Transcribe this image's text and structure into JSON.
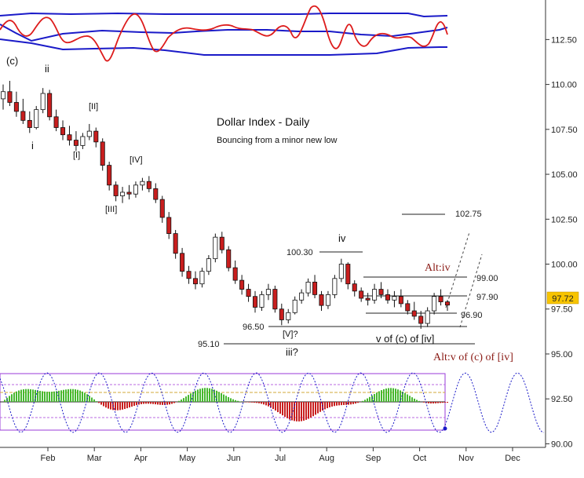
{
  "chart_data": {
    "type": "candlestick",
    "title": "Dollar Index - Daily",
    "subtitle": "Bouncing from a minor new low",
    "x_ticks": [
      "Feb",
      "Mar",
      "Apr",
      "May",
      "Jun",
      "Jul",
      "Aug",
      "Sep",
      "Oct",
      "Nov",
      "Dec"
    ],
    "y_ticks": [
      "112.50",
      "110.00",
      "107.50",
      "105.00",
      "102.50",
      "100.00",
      "97.50",
      "95.00",
      "92.50",
      "90.00"
    ],
    "ylim": [
      89.8,
      114.7
    ],
    "last_price": "97.72",
    "price_levels": [
      {
        "label": "102.75",
        "value": 102.75
      },
      {
        "label": "100.30",
        "value": 100.3
      },
      {
        "label": "99.00",
        "value": 99.0
      },
      {
        "label": "97.90",
        "value": 97.9
      },
      {
        "label": "96.90",
        "value": 96.9
      },
      {
        "label": "96.50",
        "value": 96.5
      },
      {
        "label": "95.10",
        "value": 95.1
      }
    ],
    "wave_labels": [
      "(c)",
      "ii",
      "i",
      "[II]",
      "[I]",
      "[IV]",
      "[III]",
      "iv",
      "[V]?",
      "iii?",
      "v of (c) of [iv]"
    ],
    "alt_labels": [
      "Alt:iv",
      "Alt:v of (c) of [iv]"
    ],
    "series": [
      {
        "values": [
          [
            109.2,
            110.0,
            108.6,
            109.6
          ],
          [
            109.6,
            110.2,
            108.8,
            109.0
          ],
          [
            109.0,
            109.6,
            108.2,
            108.5
          ],
          [
            108.5,
            109.2,
            107.8,
            108.0
          ],
          [
            108.0,
            108.5,
            107.3,
            107.6
          ],
          [
            107.6,
            108.8,
            107.5,
            108.6
          ],
          [
            108.6,
            109.8,
            108.4,
            109.5
          ],
          [
            109.5,
            109.7,
            108.0,
            108.2
          ],
          [
            108.2,
            108.6,
            107.4,
            107.6
          ],
          [
            107.6,
            108.0,
            106.9,
            107.2
          ],
          [
            107.2,
            107.7,
            106.6,
            106.9
          ],
          [
            106.9,
            107.4,
            106.3,
            106.6
          ],
          [
            106.6,
            107.3,
            106.4,
            107.1
          ],
          [
            107.1,
            107.8,
            106.9,
            107.4
          ],
          [
            107.4,
            107.6,
            106.5,
            106.8
          ],
          [
            106.8,
            107.0,
            105.2,
            105.5
          ],
          [
            105.5,
            105.7,
            104.1,
            104.4
          ],
          [
            104.4,
            104.6,
            103.5,
            103.8
          ],
          [
            103.8,
            104.3,
            103.4,
            104.0
          ],
          [
            104.0,
            104.4,
            103.6,
            103.9
          ],
          [
            103.9,
            104.6,
            103.7,
            104.4
          ],
          [
            104.4,
            104.8,
            104.1,
            104.6
          ],
          [
            104.6,
            104.9,
            104.0,
            104.2
          ],
          [
            104.2,
            104.5,
            103.4,
            103.6
          ],
          [
            103.6,
            103.8,
            102.3,
            102.6
          ],
          [
            102.6,
            102.9,
            101.4,
            101.7
          ],
          [
            101.7,
            101.9,
            100.3,
            100.6
          ],
          [
            100.6,
            100.9,
            99.3,
            99.6
          ],
          [
            99.6,
            99.9,
            98.9,
            99.2
          ],
          [
            99.2,
            99.6,
            98.6,
            98.9
          ],
          [
            98.9,
            99.8,
            98.7,
            99.6
          ],
          [
            99.6,
            100.5,
            99.4,
            100.3
          ],
          [
            100.3,
            101.7,
            100.1,
            101.5
          ],
          [
            101.5,
            101.8,
            100.6,
            100.8
          ],
          [
            100.8,
            101.0,
            99.6,
            99.8
          ],
          [
            99.8,
            100.2,
            98.9,
            99.1
          ],
          [
            99.1,
            99.4,
            98.3,
            98.6
          ],
          [
            98.6,
            98.9,
            97.9,
            98.2
          ],
          [
            98.2,
            98.5,
            97.3,
            97.6
          ],
          [
            97.6,
            98.5,
            97.4,
            98.3
          ],
          [
            98.3,
            98.9,
            98.0,
            98.6
          ],
          [
            98.6,
            98.8,
            97.3,
            97.5
          ],
          [
            97.5,
            97.8,
            96.6,
            96.9
          ],
          [
            96.9,
            97.5,
            96.7,
            97.3
          ],
          [
            97.3,
            98.2,
            97.2,
            98.0
          ],
          [
            98.0,
            98.6,
            97.8,
            98.4
          ],
          [
            98.4,
            99.2,
            98.2,
            99.0
          ],
          [
            99.0,
            99.4,
            98.1,
            98.3
          ],
          [
            98.3,
            98.5,
            97.4,
            97.7
          ],
          [
            97.7,
            98.5,
            97.5,
            98.3
          ],
          [
            98.3,
            99.4,
            98.1,
            99.2
          ],
          [
            99.2,
            100.3,
            99.0,
            100.0
          ],
          [
            100.0,
            100.1,
            98.6,
            98.9
          ],
          [
            98.9,
            99.1,
            98.2,
            98.5
          ],
          [
            98.5,
            98.7,
            97.9,
            98.1
          ],
          [
            98.1,
            98.4,
            97.7,
            98.0
          ],
          [
            98.0,
            98.9,
            97.8,
            98.6
          ],
          [
            98.6,
            99.0,
            98.1,
            98.3
          ],
          [
            98.3,
            98.6,
            97.8,
            98.0
          ],
          [
            98.0,
            98.5,
            97.6,
            98.2
          ],
          [
            98.2,
            98.6,
            97.6,
            97.8
          ],
          [
            97.8,
            98.0,
            97.2,
            97.4
          ],
          [
            97.4,
            97.9,
            96.9,
            97.1
          ],
          [
            97.1,
            97.4,
            96.4,
            96.7
          ],
          [
            96.7,
            97.6,
            96.5,
            97.4
          ],
          [
            97.4,
            98.4,
            97.2,
            98.2
          ],
          [
            98.2,
            98.6,
            97.7,
            97.9
          ],
          [
            97.9,
            98.0,
            97.4,
            97.72
          ]
        ]
      }
    ],
    "upper_indicator": {
      "yticks": []
    },
    "lower_indicator": {
      "yticks": []
    }
  }
}
